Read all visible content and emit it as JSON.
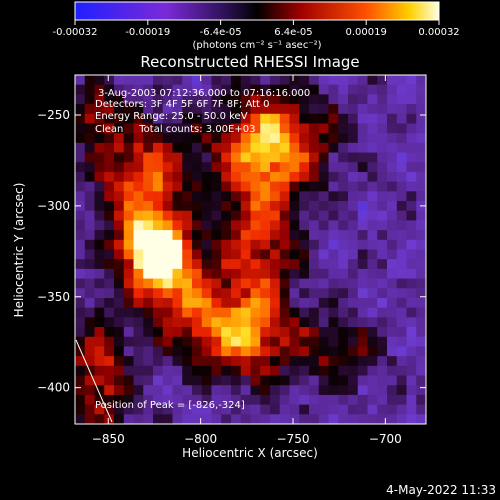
{
  "colorbar": {
    "tick_labels": [
      "-0.00032",
      "-0.00019",
      "-6.4e-05",
      "6.4e-05",
      "0.00019",
      "0.00032"
    ],
    "range": [
      -0.00032,
      0.00032
    ],
    "unit_label": "(photons cm⁻² s⁻¹ asec⁻²)"
  },
  "plot": {
    "title": "Reconstructed RHESSI Image",
    "info_lines": [
      "3-Aug-2003 07:12:36.000 to 07:16:16.000",
      "Detectors: 3F 4F 5F 6F 7F 8F; Att 0",
      "Energy Range: 25.0 - 50.0 keV",
      "Clean     Total counts: 3.00E+03"
    ],
    "peak_text": "Position of Peak = [-826,-324]",
    "footer_date": "4-May-2022 11:33"
  },
  "chart_data": {
    "type": "heatmap",
    "title": "Reconstructed RHESSI Image",
    "xlabel": "Heliocentric X (arcsec)",
    "ylabel": "Heliocentric Y (arcsec)",
    "xlim": [
      -868,
      -678
    ],
    "ylim": [
      -420,
      -228
    ],
    "x_ticks": [
      -850,
      -800,
      -750,
      -700
    ],
    "y_ticks": [
      -250,
      -300,
      -350,
      -400
    ],
    "colorbar_range": [
      -0.00032,
      0.00032
    ],
    "peak": {
      "x": -826,
      "y": -324
    },
    "bright_regions": [
      {
        "x": -826,
        "y": -324,
        "sx": 12,
        "sy": 14,
        "level": 1.0
      },
      {
        "x": -830,
        "y": -285,
        "sx": 18,
        "sy": 22,
        "level": 0.62
      },
      {
        "x": -812,
        "y": -345,
        "sx": 16,
        "sy": 18,
        "level": 0.58
      },
      {
        "x": -760,
        "y": -265,
        "sx": 22,
        "sy": 20,
        "level": 0.66
      },
      {
        "x": -768,
        "y": -320,
        "sx": 14,
        "sy": 40,
        "level": 0.55
      },
      {
        "x": -782,
        "y": -372,
        "sx": 20,
        "sy": 16,
        "level": 0.6
      },
      {
        "x": -855,
        "y": -395,
        "sx": 12,
        "sy": 26,
        "level": 0.5
      },
      {
        "x": -858,
        "y": -250,
        "sx": 10,
        "sy": 14,
        "level": 0.42
      },
      {
        "x": -725,
        "y": -380,
        "sx": 16,
        "sy": 14,
        "level": 0.35
      }
    ]
  }
}
